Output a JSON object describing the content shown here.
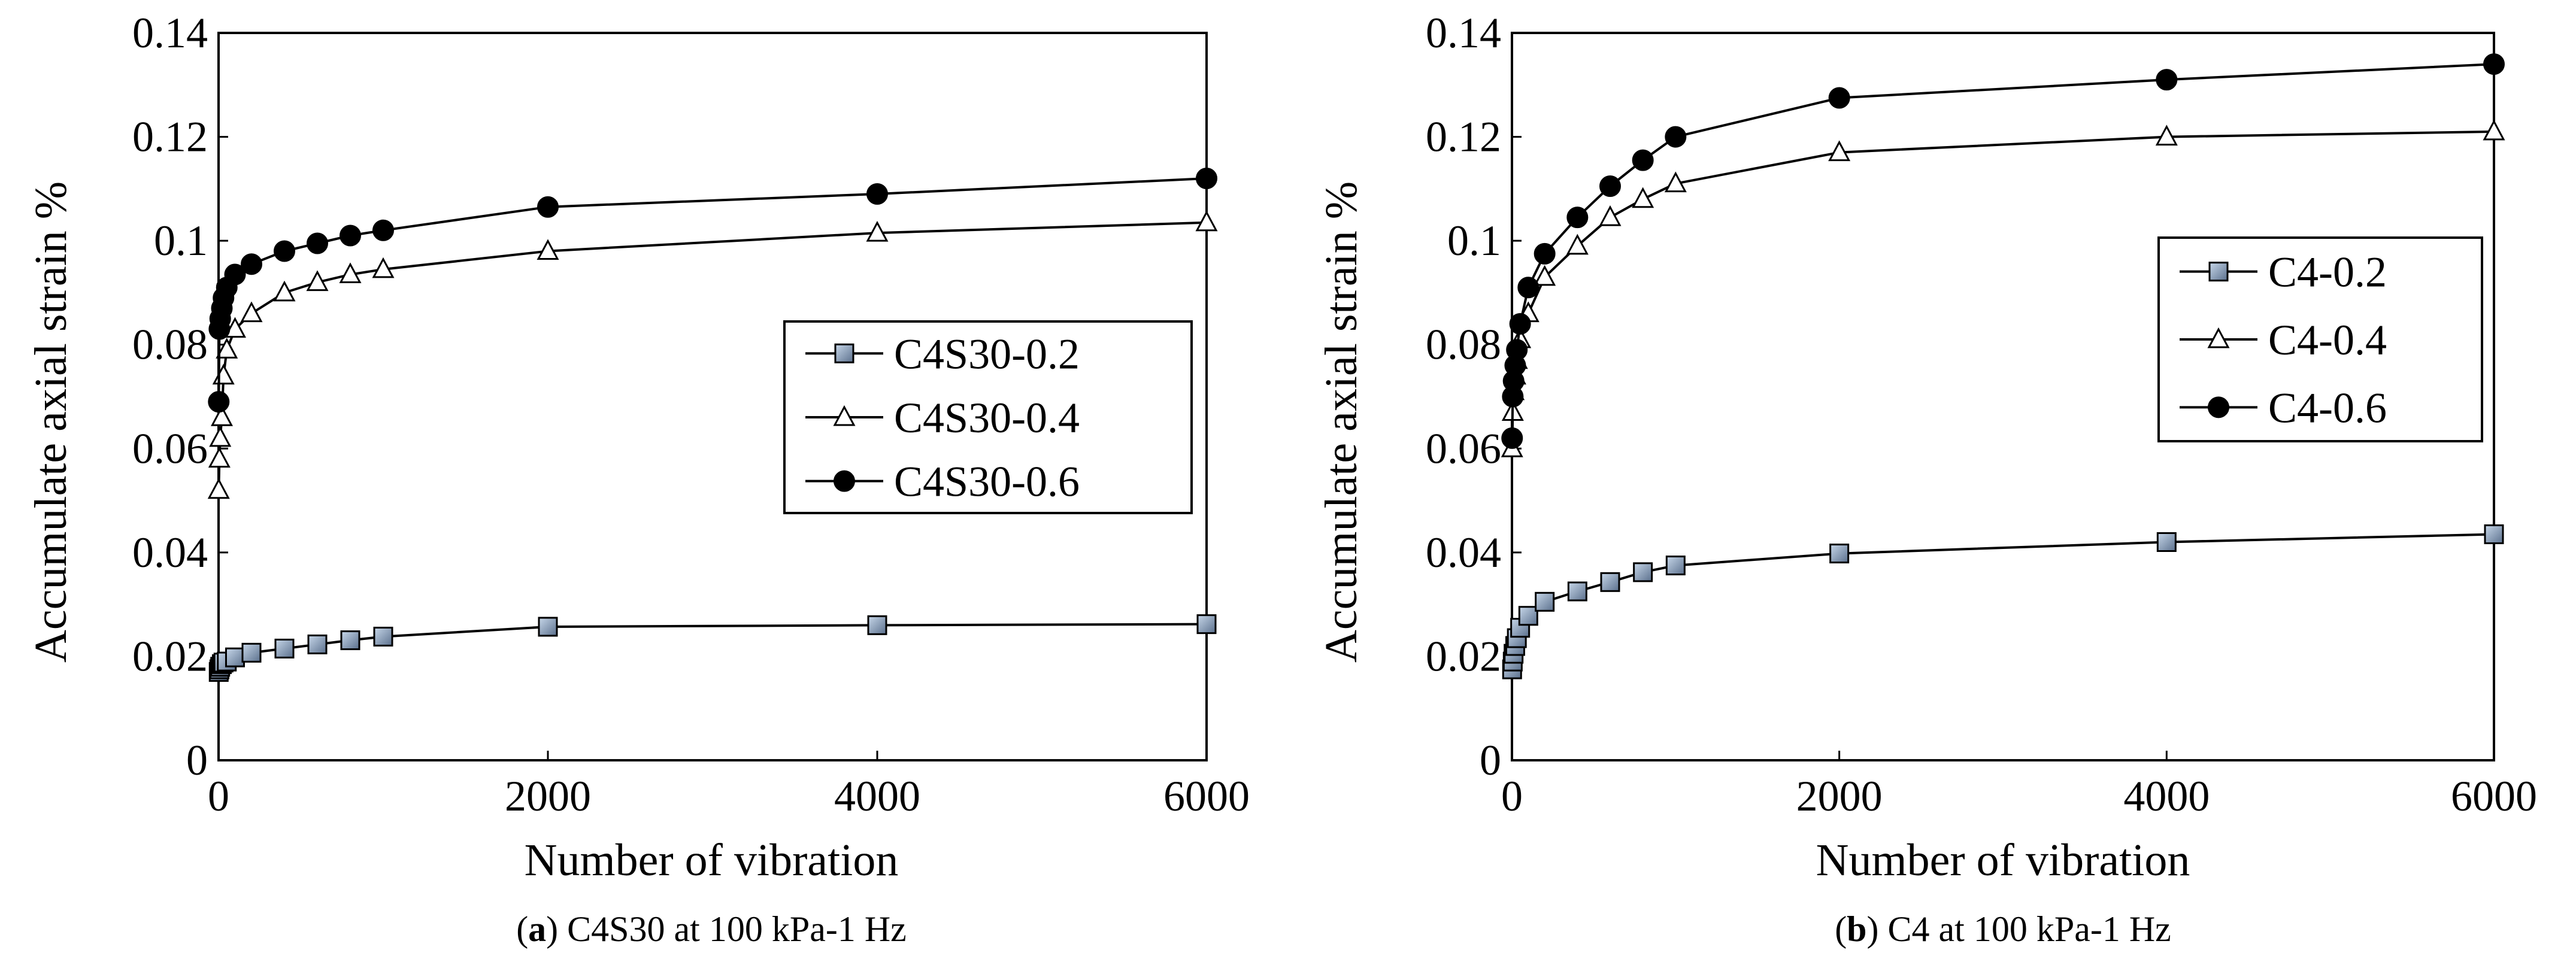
{
  "chart_data": [
    {
      "type": "line",
      "panel_letter": "a",
      "caption": " C4S30 at 100 kPa-1 Hz",
      "title": "",
      "xlabel": "Number of vibration",
      "ylabel": "Accumulate axial strain %",
      "xlim": [
        0,
        6000
      ],
      "ylim": [
        0,
        0.14
      ],
      "xticks": [
        0,
        2000,
        4000,
        6000
      ],
      "xtick_labels": [
        "0",
        "2000",
        "4000",
        "6000"
      ],
      "yticks": [
        0,
        0.02,
        0.04,
        0.06,
        0.08,
        0.1,
        0.12,
        0.14
      ],
      "ytick_labels": [
        "0",
        "0.02",
        "0.04",
        "0.06",
        "0.08",
        "0.1",
        "0.12",
        "0.14"
      ],
      "grid": false,
      "legend_position": "center-right",
      "series": [
        {
          "name": "C4S30-0.2",
          "marker": "square",
          "x": [
            1,
            5,
            10,
            20,
            30,
            50,
            100,
            200,
            400,
            600,
            800,
            1000,
            2000,
            4000,
            6000
          ],
          "y": [
            0.017,
            0.0175,
            0.018,
            0.0185,
            0.0188,
            0.019,
            0.0198,
            0.0207,
            0.0215,
            0.0223,
            0.0231,
            0.0238,
            0.0257,
            0.026,
            0.0262
          ]
        },
        {
          "name": "C4S30-0.4",
          "marker": "triangle",
          "x": [
            1,
            5,
            10,
            20,
            30,
            50,
            100,
            200,
            400,
            600,
            800,
            1000,
            2000,
            4000,
            6000
          ],
          "y": [
            0.052,
            0.058,
            0.062,
            0.066,
            0.074,
            0.079,
            0.083,
            0.086,
            0.09,
            0.092,
            0.0935,
            0.0945,
            0.098,
            0.1015,
            0.1035
          ]
        },
        {
          "name": "C4S30-0.6",
          "marker": "circle",
          "x": [
            1,
            5,
            10,
            20,
            30,
            50,
            100,
            200,
            400,
            600,
            800,
            1000,
            2000,
            4000,
            6000
          ],
          "y": [
            0.069,
            0.083,
            0.085,
            0.087,
            0.089,
            0.091,
            0.0935,
            0.0955,
            0.098,
            0.0995,
            0.101,
            0.102,
            0.1065,
            0.109,
            0.112
          ]
        }
      ]
    },
    {
      "type": "line",
      "panel_letter": "b",
      "caption": " C4 at 100 kPa-1 Hz",
      "title": "",
      "xlabel": "Number of vibration",
      "ylabel": "Accumulate axial strain %",
      "xlim": [
        0,
        6000
      ],
      "ylim": [
        0,
        0.14
      ],
      "xticks": [
        0,
        2000,
        4000,
        6000
      ],
      "xtick_labels": [
        "0",
        "2000",
        "4000",
        "6000"
      ],
      "yticks": [
        0,
        0.02,
        0.04,
        0.06,
        0.08,
        0.1,
        0.12,
        0.14
      ],
      "ytick_labels": [
        "0",
        "0.02",
        "0.04",
        "0.06",
        "0.08",
        "0.1",
        "0.12",
        "0.14"
      ],
      "grid": false,
      "legend_position": "right",
      "series": [
        {
          "name": "C4-0.2",
          "marker": "square",
          "x": [
            1,
            5,
            10,
            20,
            30,
            50,
            100,
            200,
            400,
            600,
            800,
            1000,
            2000,
            4000,
            6000
          ],
          "y": [
            0.0175,
            0.019,
            0.0205,
            0.022,
            0.0235,
            0.0255,
            0.0278,
            0.0305,
            0.0325,
            0.0343,
            0.0362,
            0.0375,
            0.0398,
            0.042,
            0.0435
          ]
        },
        {
          "name": "C4-0.4",
          "marker": "triangle",
          "x": [
            1,
            5,
            10,
            20,
            30,
            50,
            100,
            200,
            400,
            600,
            800,
            1000,
            2000,
            4000,
            6000
          ],
          "y": [
            0.06,
            0.067,
            0.071,
            0.074,
            0.077,
            0.081,
            0.086,
            0.093,
            0.099,
            0.1045,
            0.108,
            0.111,
            0.117,
            0.12,
            0.121
          ]
        },
        {
          "name": "C4-0.6",
          "marker": "circle",
          "x": [
            1,
            5,
            10,
            20,
            30,
            50,
            100,
            200,
            400,
            600,
            800,
            1000,
            2000,
            4000,
            6000
          ],
          "y": [
            0.062,
            0.07,
            0.073,
            0.076,
            0.079,
            0.084,
            0.091,
            0.0975,
            0.1045,
            0.1105,
            0.1155,
            0.12,
            0.1275,
            0.131,
            0.134
          ]
        }
      ]
    }
  ]
}
